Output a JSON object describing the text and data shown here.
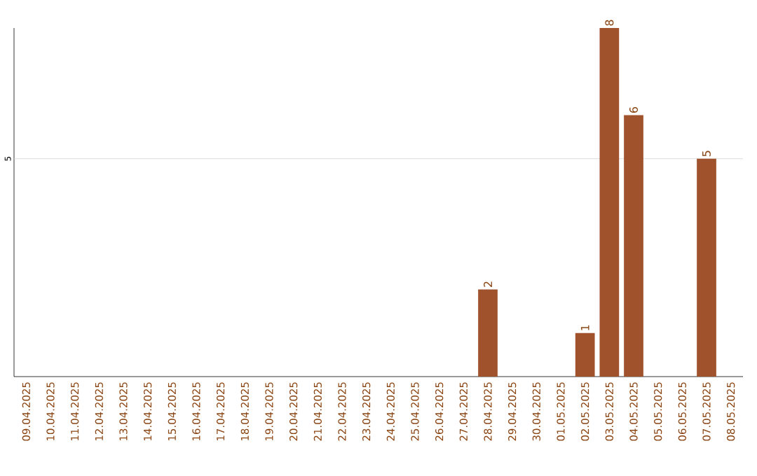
{
  "chart_data": {
    "type": "bar",
    "categories": [
      "09.04.2025",
      "10.04.2025",
      "11.04.2025",
      "12.04.2025",
      "13.04.2025",
      "14.04.2025",
      "15.04.2025",
      "16.04.2025",
      "17.04.2025",
      "18.04.2025",
      "19.04.2025",
      "20.04.2025",
      "21.04.2025",
      "22.04.2025",
      "23.04.2025",
      "24.04.2025",
      "25.04.2025",
      "26.04.2025",
      "27.04.2025",
      "28.04.2025",
      "29.04.2025",
      "30.04.2025",
      "01.05.2025",
      "02.05.2025",
      "03.05.2025",
      "04.05.2025",
      "05.05.2025",
      "06.05.2025",
      "07.05.2025",
      "08.05.2025"
    ],
    "values": [
      null,
      null,
      null,
      null,
      null,
      null,
      null,
      null,
      null,
      null,
      null,
      null,
      null,
      null,
      null,
      null,
      null,
      null,
      null,
      2,
      null,
      null,
      null,
      1,
      8,
      6,
      null,
      null,
      5,
      null
    ],
    "data_labels": true,
    "color": "#a0522d",
    "ylim": [
      0,
      8
    ],
    "ref_lines": [
      {
        "axis": "y",
        "value": 5,
        "label": "5",
        "color": "#d3d3d3"
      }
    ]
  }
}
